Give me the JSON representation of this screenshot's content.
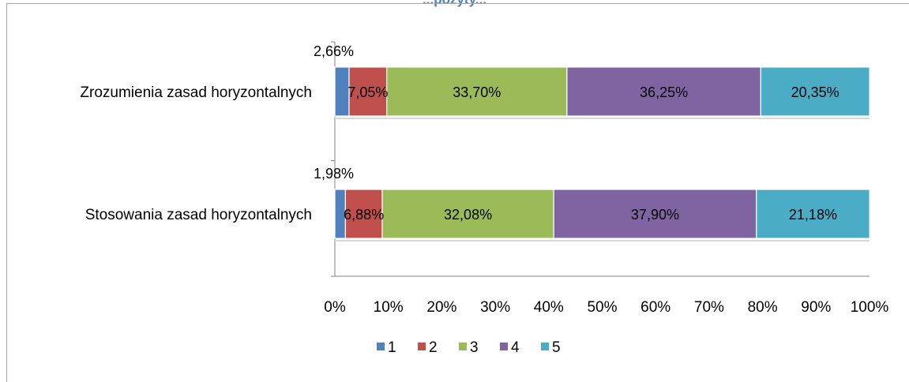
{
  "heading_fragment": "...pozyty...",
  "chart_data": {
    "type": "bar",
    "orientation": "horizontal",
    "stacked": "percent",
    "categories": [
      "Zrozumienia zasad horyzontalnych",
      "Stosowania zasad horyzontalnych"
    ],
    "series": [
      {
        "name": "1",
        "color": "#4f81bd",
        "values": [
          2.66,
          1.98
        ],
        "labels": [
          "2,66%",
          "1,98%"
        ]
      },
      {
        "name": "2",
        "color": "#c0504d",
        "values": [
          7.05,
          6.88
        ],
        "labels": [
          "7,05%",
          "6,88%"
        ]
      },
      {
        "name": "3",
        "color": "#9bbb59",
        "values": [
          33.7,
          32.08
        ],
        "labels": [
          "33,70%",
          "32,08%"
        ]
      },
      {
        "name": "4",
        "color": "#8064a2",
        "values": [
          36.25,
          37.9
        ],
        "labels": [
          "36,25%",
          "37,90%"
        ]
      },
      {
        "name": "5",
        "color": "#4bacc6",
        "values": [
          20.35,
          21.18
        ],
        "labels": [
          "20,35%",
          "21,18%"
        ]
      }
    ],
    "xlim": [
      0,
      100
    ],
    "xticks": [
      "0%",
      "10%",
      "20%",
      "30%",
      "40%",
      "50%",
      "60%",
      "70%",
      "80%",
      "90%",
      "100%"
    ],
    "grid": false,
    "legend_position": "bottom"
  }
}
